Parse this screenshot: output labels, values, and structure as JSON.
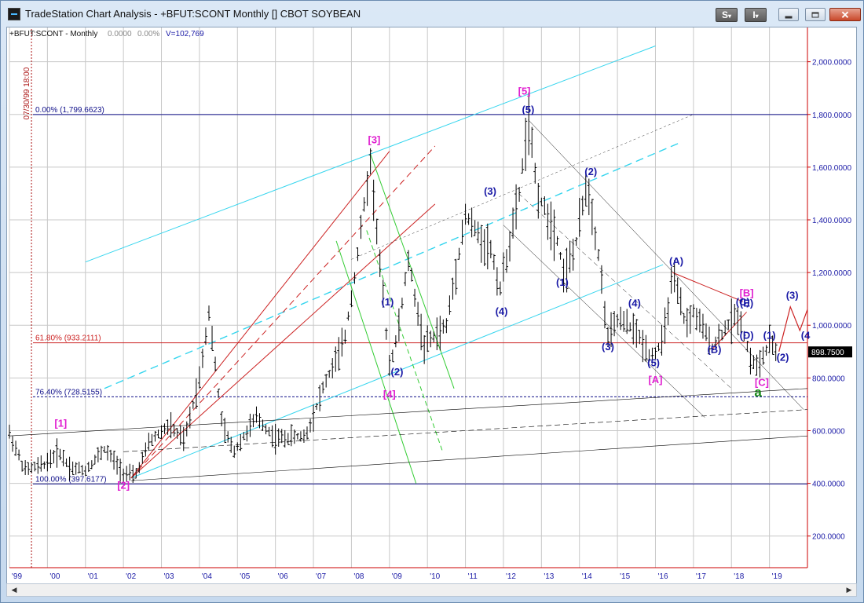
{
  "window": {
    "title": "TradeStation Chart Analysis - +BFUT:SCONT Monthly [] CBOT SOYBEAN",
    "btn_s": "S",
    "btn_i": "I",
    "caret": "▾"
  },
  "chart_header": {
    "symbol": "+BFUT:SCONT - Monthly",
    "change": "0.0000",
    "change_pct": "0.00%",
    "volume": "V=102,769"
  },
  "cursor_time_label": "07/30/99 18:00",
  "last_price_label": "898.7500",
  "colors": {
    "price_axis_line": "#cc0000",
    "price_axis_text": "#1a1aa6",
    "time_axis_text": "#1a1aa6",
    "grid": "#c8c8c8",
    "bars": "#000000",
    "wave_blue": "#1a1aa6",
    "wave_magenta": "#e020d0",
    "wave_green": "#1a8a1a",
    "channel_cyan": "#35d5ee",
    "channel_red": "#cc2222",
    "channel_green": "#33cc33",
    "fib_blue": "#10108a",
    "fib_red": "#cc2222"
  },
  "fib_labels": [
    {
      "text": "0.00% (1,799.6623)",
      "price": 1799.6623
    },
    {
      "text": "61.80% (933.2111)",
      "price": 933.2111
    },
    {
      "text": "76.40% (728.5155)",
      "price": 728.5155
    },
    {
      "text": "100.00% (397.6177)",
      "price": 397.6177
    }
  ],
  "chart_data": {
    "type": "ohlc-bar",
    "symbol": "+BFUT:SCONT",
    "interval": "Monthly",
    "y_ticks": [
      "200.0000",
      "400.0000",
      "600.0000",
      "800.0000",
      "1,000.0000",
      "1,200.0000",
      "1,400.0000",
      "1,600.0000",
      "1,800.0000",
      "2,000.0000"
    ],
    "y_tick_values": [
      200,
      400,
      600,
      800,
      1000,
      1200,
      1400,
      1600,
      1800,
      2000
    ],
    "x_ticks": [
      "'99",
      "'00",
      "'01",
      "'02",
      "'03",
      "'04",
      "'05",
      "'06",
      "'07",
      "'08",
      "'09",
      "'10",
      "'11",
      "'12",
      "'13",
      "'14",
      "'15",
      "'16",
      "'17",
      "'18",
      "'19"
    ],
    "ylim": [
      80,
      2130
    ],
    "xlim": [
      1999.0,
      2020.0
    ],
    "price_path": [
      [
        1999.0,
        590
      ],
      [
        1999.4,
        450
      ],
      [
        1999.9,
        470
      ],
      [
        2000.3,
        520
      ],
      [
        2000.6,
        460
      ],
      [
        2001.0,
        450
      ],
      [
        2001.5,
        530
      ],
      [
        2002.0,
        440
      ],
      [
        2002.3,
        425
      ],
      [
        2002.7,
        560
      ],
      [
        2003.2,
        620
      ],
      [
        2003.6,
        560
      ],
      [
        2004.0,
        800
      ],
      [
        2004.25,
        1050
      ],
      [
        2004.6,
        620
      ],
      [
        2004.9,
        520
      ],
      [
        2005.5,
        650
      ],
      [
        2006.0,
        570
      ],
      [
        2006.8,
        580
      ],
      [
        2007.3,
        780
      ],
      [
        2007.8,
        930
      ],
      [
        2008.1,
        1200
      ],
      [
        2008.35,
        1470
      ],
      [
        2008.5,
        1620
      ],
      [
        2008.8,
        1150
      ],
      [
        2009.0,
        850
      ],
      [
        2009.2,
        950
      ],
      [
        2009.5,
        1250
      ],
      [
        2009.9,
        920
      ],
      [
        2010.5,
        1000
      ],
      [
        2011.0,
        1420
      ],
      [
        2011.3,
        1350
      ],
      [
        2011.7,
        1280
      ],
      [
        2011.9,
        1130
      ],
      [
        2012.4,
        1480
      ],
      [
        2012.65,
        1780
      ],
      [
        2012.9,
        1500
      ],
      [
        2013.4,
        1340
      ],
      [
        2013.6,
        1190
      ],
      [
        2013.9,
        1300
      ],
      [
        2014.2,
        1550
      ],
      [
        2014.5,
        1270
      ],
      [
        2014.75,
        950
      ],
      [
        2015.0,
        1020
      ],
      [
        2015.4,
        990
      ],
      [
        2015.9,
        880
      ],
      [
        2016.2,
        940
      ],
      [
        2016.45,
        1190
      ],
      [
        2016.8,
        1000
      ],
      [
        2017.0,
        1050
      ],
      [
        2017.5,
        920
      ],
      [
        2017.8,
        980
      ],
      [
        2018.0,
        1020
      ],
      [
        2018.2,
        1040
      ],
      [
        2018.5,
        870
      ],
      [
        2018.7,
        840
      ],
      [
        2019.0,
        930
      ],
      [
        2019.2,
        899
      ]
    ],
    "last_price": 898.75,
    "wave_labels": [
      {
        "text": "[1]",
        "x": 2000.35,
        "y": 615,
        "color": "magenta"
      },
      {
        "text": "[2]",
        "x": 2002.0,
        "y": 380,
        "color": "magenta"
      },
      {
        "text": "[3]",
        "x": 2008.6,
        "y": 1690,
        "color": "magenta"
      },
      {
        "text": "[4]",
        "x": 2009.0,
        "y": 725,
        "color": "magenta"
      },
      {
        "text": "[5]",
        "x": 2012.55,
        "y": 1875,
        "color": "magenta"
      },
      {
        "text": "[A]",
        "x": 2016.0,
        "y": 780,
        "color": "magenta"
      },
      {
        "text": "[B]",
        "x": 2018.4,
        "y": 1110,
        "color": "magenta"
      },
      {
        "text": "[C]",
        "x": 2018.8,
        "y": 770,
        "color": "magenta"
      },
      {
        "text": "(1)",
        "x": 2008.95,
        "y": 1075,
        "color": "blue"
      },
      {
        "text": "(2)",
        "x": 2009.2,
        "y": 810,
        "color": "blue"
      },
      {
        "text": "(3)",
        "x": 2011.65,
        "y": 1495,
        "color": "blue"
      },
      {
        "text": "(4)",
        "x": 2011.95,
        "y": 1040,
        "color": "blue"
      },
      {
        "text": "(5)",
        "x": 2012.65,
        "y": 1805,
        "color": "blue"
      },
      {
        "text": "(1)",
        "x": 2013.55,
        "y": 1150,
        "color": "blue"
      },
      {
        "text": "(2)",
        "x": 2014.3,
        "y": 1570,
        "color": "blue"
      },
      {
        "text": "(3)",
        "x": 2014.75,
        "y": 905,
        "color": "blue"
      },
      {
        "text": "(4)",
        "x": 2015.45,
        "y": 1070,
        "color": "blue"
      },
      {
        "text": "(5)",
        "x": 2015.95,
        "y": 845,
        "color": "blue"
      },
      {
        "text": "(A)",
        "x": 2016.55,
        "y": 1230,
        "color": "blue"
      },
      {
        "text": "(B)",
        "x": 2017.55,
        "y": 895,
        "color": "blue"
      },
      {
        "text": "(C)",
        "x": 2018.3,
        "y": 1075,
        "color": "blue"
      },
      {
        "text": "(E)",
        "x": 2018.4,
        "y": 1070,
        "color": "blue"
      },
      {
        "text": "(D)",
        "x": 2018.4,
        "y": 948,
        "color": "blue"
      },
      {
        "text": "(1)",
        "x": 2019.0,
        "y": 948,
        "color": "blue"
      },
      {
        "text": "(2)",
        "x": 2019.35,
        "y": 865,
        "color": "blue"
      },
      {
        "text": "(3)",
        "x": 2019.6,
        "y": 1100,
        "color": "blue"
      },
      {
        "text": "(4",
        "x": 2019.95,
        "y": 948,
        "color": "blue"
      },
      {
        "text": "a",
        "x": 2018.7,
        "y": 730,
        "color": "green"
      }
    ]
  }
}
